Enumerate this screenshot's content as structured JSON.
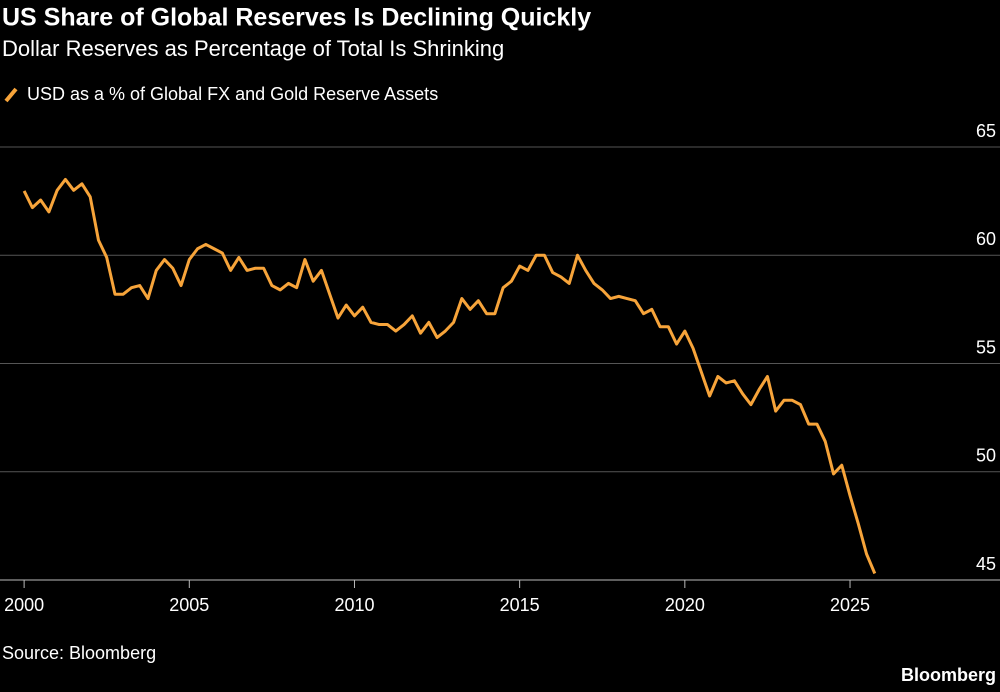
{
  "chart_data": {
    "type": "line",
    "title": "US Share of Global Reserves Is Declining Quickly",
    "subtitle": "Dollar Reserves as Percentage of Total Is Shrinking",
    "source": "Source: Bloomberg",
    "brand": "Bloomberg",
    "x": [
      2000,
      2000.25,
      2000.5,
      2000.75,
      2001,
      2001.25,
      2001.5,
      2001.75,
      2002,
      2002.25,
      2002.5,
      2002.75,
      2003,
      2003.25,
      2003.5,
      2003.75,
      2004,
      2004.25,
      2004.5,
      2004.75,
      2005,
      2005.25,
      2005.5,
      2005.75,
      2006,
      2006.25,
      2006.5,
      2006.75,
      2007,
      2007.25,
      2007.5,
      2007.75,
      2008,
      2008.25,
      2008.5,
      2008.75,
      2009,
      2009.25,
      2009.5,
      2009.75,
      2010,
      2010.25,
      2010.5,
      2010.75,
      2011,
      2011.25,
      2011.5,
      2011.75,
      2012,
      2012.25,
      2012.5,
      2012.75,
      2013,
      2013.25,
      2013.5,
      2013.75,
      2014,
      2014.25,
      2014.5,
      2014.75,
      2015,
      2015.25,
      2015.5,
      2015.75,
      2016,
      2016.25,
      2016.5,
      2016.75,
      2017,
      2017.25,
      2017.5,
      2017.75,
      2018,
      2018.25,
      2018.5,
      2018.75,
      2019,
      2019.25,
      2019.5,
      2019.75,
      2020,
      2020.25,
      2020.5,
      2020.75,
      2021,
      2021.25,
      2021.5,
      2021.75,
      2022,
      2022.25,
      2022.5,
      2022.75,
      2023,
      2023.25,
      2023.5,
      2023.75,
      2024,
      2024.25,
      2024.5,
      2024.75,
      2025,
      2025.25,
      2025.5,
      2025.75
    ],
    "series": [
      {
        "name": "USD as a % of Global FX and Gold Reserve Assets",
        "color": "#f7a43a",
        "values": [
          62.97,
          62.2,
          62.55,
          62.0,
          63.0,
          63.5,
          63.0,
          63.3,
          62.7,
          60.7,
          59.9,
          58.2,
          58.2,
          58.5,
          58.6,
          58.0,
          59.3,
          59.8,
          59.4,
          58.6,
          59.8,
          60.3,
          60.5,
          60.3,
          60.1,
          59.3,
          59.9,
          59.3,
          59.4,
          59.4,
          58.6,
          58.4,
          58.7,
          58.5,
          59.8,
          58.8,
          59.3,
          58.2,
          57.1,
          57.7,
          57.2,
          57.6,
          56.9,
          56.8,
          56.8,
          56.5,
          56.8,
          57.2,
          56.4,
          56.9,
          56.2,
          56.5,
          56.9,
          58.0,
          57.5,
          57.9,
          57.3,
          57.3,
          58.5,
          58.8,
          59.5,
          59.3,
          60.0,
          60.0,
          59.2,
          59.0,
          58.7,
          60.0,
          59.3,
          58.7,
          58.4,
          58.0,
          58.1,
          58.0,
          57.9,
          57.3,
          57.5,
          56.7,
          56.7,
          55.9,
          56.5,
          55.7,
          54.6,
          53.5,
          54.4,
          54.1,
          54.2,
          53.6,
          53.1,
          53.8,
          54.4,
          52.8,
          53.3,
          53.3,
          53.1,
          52.2,
          52.2,
          51.4,
          49.9,
          50.3,
          48.9,
          47.6,
          46.2,
          45.3
        ]
      }
    ],
    "xlim": [
      1999.27,
      2029.54
    ],
    "xticks": [
      2000,
      2005,
      2010,
      2015,
      2020,
      2025
    ],
    "ylim": [
      45,
      65
    ],
    "yticks": [
      45,
      50,
      55,
      60,
      65
    ],
    "grid": true
  }
}
